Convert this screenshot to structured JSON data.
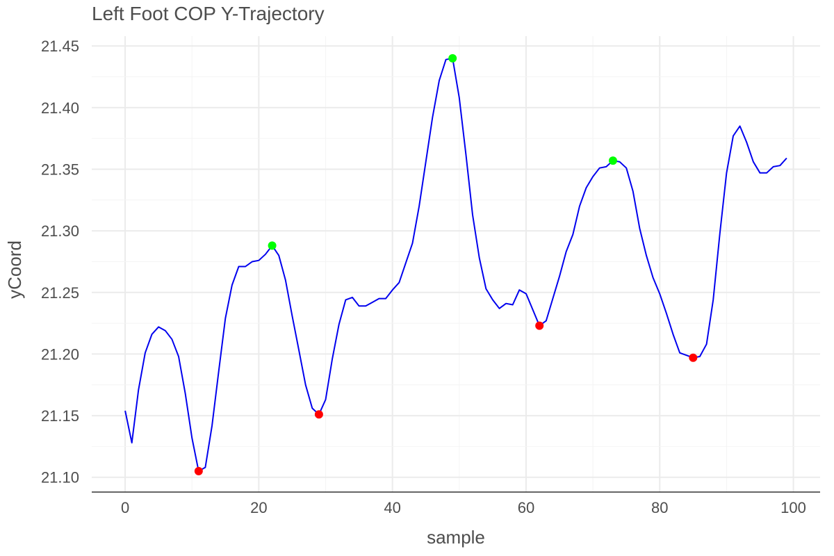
{
  "chart_data": {
    "type": "line",
    "title": "Left Foot COP Y-Trajectory",
    "xlabel": "sample",
    "ylabel": "yCoord",
    "xlim": [
      -5,
      104
    ],
    "ylim": [
      21.088,
      21.458
    ],
    "xticks": [
      0,
      20,
      40,
      60,
      80,
      100
    ],
    "yticks": [
      21.1,
      21.15,
      21.2,
      21.25,
      21.3,
      21.35,
      21.4,
      21.45
    ],
    "ytick_labels": [
      "21.10",
      "21.15",
      "21.20",
      "21.25",
      "21.30",
      "21.35",
      "21.40",
      "21.45"
    ],
    "grid": true,
    "line_color": "#0000ee",
    "series": [
      {
        "x": [
          0,
          1,
          2,
          3,
          4,
          5,
          6,
          7,
          8,
          9,
          10,
          11,
          12,
          13,
          14,
          15,
          16,
          17,
          18,
          19,
          20,
          21,
          22,
          23,
          24,
          25,
          26,
          27,
          28,
          29,
          30,
          31,
          32,
          33,
          34,
          35,
          36,
          37,
          38,
          39,
          40,
          41,
          42,
          43,
          44,
          45,
          46,
          47,
          48,
          49,
          50,
          51,
          52,
          53,
          54,
          55,
          56,
          57,
          58,
          59,
          60,
          61,
          62,
          63,
          64,
          65,
          66,
          67,
          68,
          69,
          70,
          71,
          72,
          73,
          74,
          75,
          76,
          77,
          78,
          79,
          80,
          81,
          82,
          83,
          84,
          85,
          86,
          87,
          88,
          89,
          90,
          91,
          92,
          93,
          94,
          95,
          96,
          97,
          98,
          99
        ],
        "values": [
          21.154,
          21.128,
          21.171,
          21.201,
          21.216,
          21.222,
          21.219,
          21.212,
          21.198,
          21.168,
          21.132,
          21.105,
          21.108,
          21.142,
          21.186,
          21.229,
          21.256,
          21.271,
          21.271,
          21.275,
          21.276,
          21.281,
          21.288,
          21.28,
          21.26,
          21.231,
          21.203,
          21.175,
          21.156,
          21.151,
          21.163,
          21.196,
          21.224,
          21.244,
          21.246,
          21.239,
          21.239,
          21.242,
          21.245,
          21.245,
          21.252,
          21.258,
          21.274,
          21.29,
          21.32,
          21.356,
          21.392,
          21.422,
          21.439,
          21.44,
          21.408,
          21.362,
          21.313,
          21.278,
          21.253,
          21.244,
          21.237,
          21.241,
          21.24,
          21.252,
          21.249,
          21.236,
          21.223,
          21.227,
          21.245,
          21.263,
          21.283,
          21.297,
          21.32,
          21.335,
          21.344,
          21.351,
          21.352,
          21.357,
          21.356,
          21.351,
          21.332,
          21.302,
          21.28,
          21.262,
          21.249,
          21.233,
          21.216,
          21.201,
          21.199,
          21.197,
          21.198,
          21.208,
          21.244,
          21.298,
          21.347,
          21.377,
          21.385,
          21.372,
          21.356,
          21.347,
          21.347,
          21.352,
          21.353,
          21.359
        ]
      }
    ],
    "markers": [
      {
        "kind": "min",
        "color": "#ff0000",
        "x": 11,
        "y": 21.105
      },
      {
        "kind": "max",
        "color": "#00ff00",
        "x": 22,
        "y": 21.288
      },
      {
        "kind": "min",
        "color": "#ff0000",
        "x": 29,
        "y": 21.151
      },
      {
        "kind": "max",
        "color": "#00ff00",
        "x": 49,
        "y": 21.44
      },
      {
        "kind": "min",
        "color": "#ff0000",
        "x": 62,
        "y": 21.223
      },
      {
        "kind": "max",
        "color": "#00ff00",
        "x": 73,
        "y": 21.357
      },
      {
        "kind": "min",
        "color": "#ff0000",
        "x": 85,
        "y": 21.197
      }
    ]
  }
}
